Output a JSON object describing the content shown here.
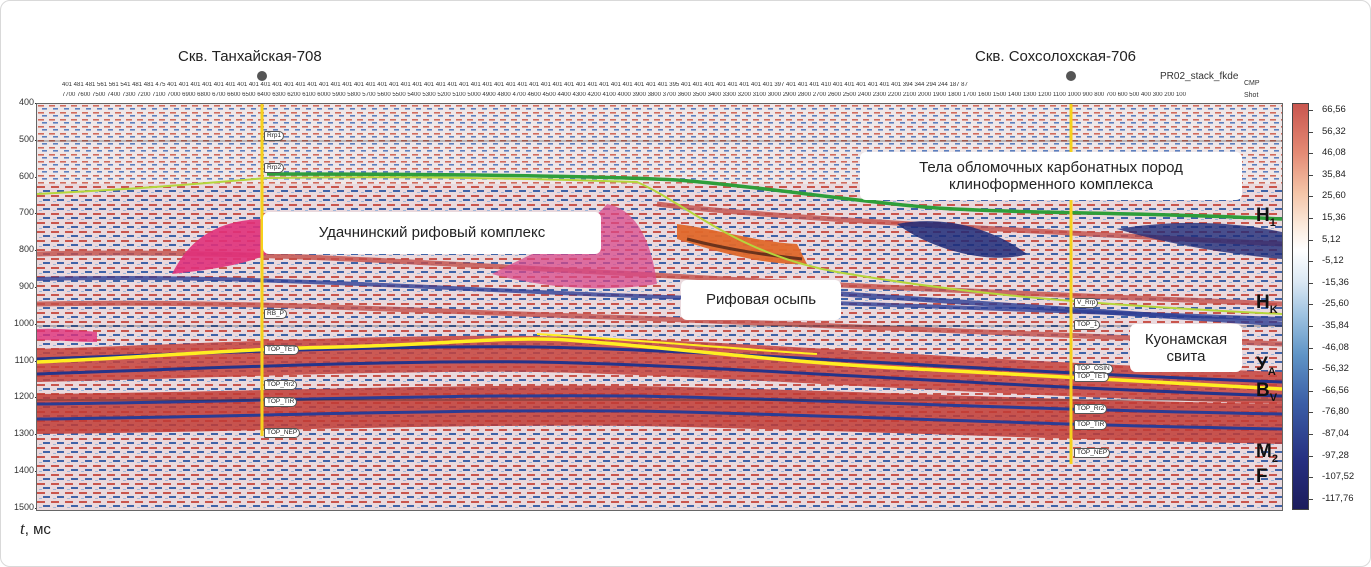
{
  "wells": [
    {
      "name": "Скв. Танхайская-708"
    },
    {
      "name": "Скв. Сохсолохская-706"
    }
  ],
  "processing_label": "PR02_stack_fkde",
  "header_labels": {
    "cmp": "CMP",
    "shot": "Shot"
  },
  "cmp_row": "401 481 481 561 561 541 481 481 475 401 401 401 401 401 401 401 401 401 401 401 401 401 401 401 401 401 401 401 401 401 401 401 401 401 401 401 401 401 401 401 401 401 401 401 401 401 401 401 401 401 401 401 395 401 401 401 401 401 401 401 401 397 401 401 401 410 401 401 401 401 401 401 394 344 294 244 187 87",
  "shot_row": "7700 7600 7500 7400 7300 7200 7100 7000 6900 6800 6700 6600 6500 6400 6300 6200 6100 6000 5900 5800 5700 5600 5500 5400 5300 5200 5100 5000 4900 4800 4700 4600 4500 4400 4300 4200 4100 4000 3900 3800 3700 3600 3500 3400 3300 3200 3100 3000 2900 2800 2700 2600 2500 2400 2300 2200 2100 2000 1900 1800 1700 1600 1500 1400 1300 1200 1100 1000 900 800 700 600 500 400 300 200 100",
  "y_axis": {
    "ticks": [
      "400",
      "500",
      "600",
      "700",
      "800",
      "900",
      "1000",
      "1100",
      "1200",
      "1300",
      "1400",
      "1500"
    ],
    "label_var": "t",
    "label_unit": ", мс"
  },
  "callouts": {
    "reef_complex": "Удачнинский рифовый комплекс",
    "reef_talus": "Рифовая осыпь",
    "clastic_bodies_1": "Тела обломочных карбонатных пород",
    "clastic_bodies_2": "клиноформенного комплекса",
    "kuonamka_1": "Куонамская",
    "kuonamka_2": "свита"
  },
  "horizons": [
    {
      "base": "H",
      "sub": "1"
    },
    {
      "base": "H",
      "sub": "K"
    },
    {
      "base": "У",
      "sub": "A"
    },
    {
      "base": "B",
      "sub": "V"
    },
    {
      "base": "M",
      "sub": "2"
    },
    {
      "base": "F",
      "sub": ""
    }
  ],
  "well_markers": {
    "left": [
      "Rrp1",
      "Rrp2",
      "RB_P",
      "TOP_TET",
      "TOP_Rr2",
      "TOP_TIR",
      "TOP_NEP"
    ],
    "right": [
      "V_Rrp",
      "TOP_1",
      "TOP_OSIN",
      "TOP_TET",
      "TOP_Rr2",
      "TOP_TIR",
      "TOP_NEP"
    ]
  },
  "colorbar": {
    "ticks": [
      "66,56",
      "56,32",
      "46,08",
      "35,84",
      "25,60",
      "15,36",
      "5,12",
      "-5,12",
      "-15,36",
      "-25,60",
      "-35,84",
      "-46,08",
      "-56,32",
      "-66,56",
      "-76,80",
      "-87,04",
      "-97,28",
      "-107,52",
      "-117,76"
    ],
    "colors": {
      "max": "#c9564f",
      "zero": "#ffffff",
      "min": "#1c1c5c"
    }
  },
  "colors": {
    "horizon_yellow": "#ffee22",
    "horizon_green": "#2e9e3a",
    "horizon_lightgreen": "#b5d63c",
    "reef_magenta": "#e0307a",
    "talus_orange": "#e0682a",
    "well_line": "#f5d21c"
  }
}
